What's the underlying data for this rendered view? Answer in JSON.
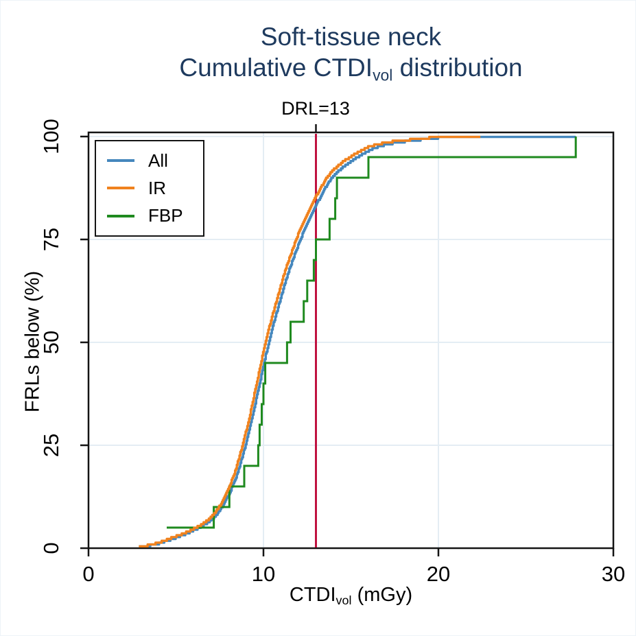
{
  "title": {
    "line1": "Soft-tissue neck",
    "line2_pre": "Cumulative CTDI",
    "line2_sub": "vol",
    "line2_post": " distribution",
    "color": "#1e3a5e"
  },
  "reference_label": "DRL=13",
  "y_axis_label": "FRLs below (%)",
  "x_axis_label": {
    "pre": "CTDI",
    "sub": "vol",
    "post": " (mGy)"
  },
  "legend": {
    "items": [
      {
        "label": "All",
        "color": "#4587bd"
      },
      {
        "label": "IR",
        "color": "#f0821e"
      },
      {
        "label": "FBP",
        "color": "#1f8a1f"
      }
    ]
  },
  "colors": {
    "frame": "#141414",
    "grid": "#e4edf4",
    "tick_text": "#000000",
    "reference_line": "#c01240"
  },
  "chart_data": {
    "type": "line",
    "subtype": "cumulative-distribution",
    "title": "Soft-tissue neck — Cumulative CTDIvol distribution",
    "xlabel": "CTDIvol (mGy)",
    "ylabel": "FRLs below (%)",
    "xlim": [
      0,
      30
    ],
    "ylim": [
      0,
      100
    ],
    "x_ticks": [
      0,
      10,
      20,
      30
    ],
    "y_ticks": [
      0,
      25,
      50,
      75,
      100
    ],
    "grid_x": [
      10,
      20
    ],
    "grid_y": [
      25,
      50,
      75,
      100
    ],
    "reference_line": {
      "x": 13,
      "label": "DRL=13"
    },
    "series": [
      {
        "name": "All",
        "color": "#4587bd",
        "style": "ecdf_smooth",
        "points": [
          [
            2.88,
            0.3
          ],
          [
            3.4,
            0.6
          ],
          [
            3.9,
            1.0
          ],
          [
            4.4,
            1.7
          ],
          [
            4.9,
            2.4
          ],
          [
            5.4,
            3.2
          ],
          [
            5.9,
            4.1
          ],
          [
            6.4,
            5.2
          ],
          [
            6.9,
            6.5
          ],
          [
            7.3,
            8.1
          ],
          [
            7.7,
            10.5
          ],
          [
            8.1,
            13.8
          ],
          [
            8.5,
            18
          ],
          [
            8.9,
            24
          ],
          [
            9.3,
            31
          ],
          [
            9.7,
            38.5
          ],
          [
            10.1,
            46.5
          ],
          [
            10.5,
            53.5
          ],
          [
            10.9,
            59.5
          ],
          [
            11.3,
            65.5
          ],
          [
            11.7,
            70.5
          ],
          [
            12.1,
            75
          ],
          [
            12.5,
            79
          ],
          [
            12.9,
            82.5
          ],
          [
            13.3,
            85.8
          ],
          [
            13.7,
            88.8
          ],
          [
            14.1,
            91
          ],
          [
            14.6,
            92.8
          ],
          [
            15.1,
            94.3
          ],
          [
            15.6,
            95.6
          ],
          [
            16.1,
            96.8
          ],
          [
            16.7,
            97.7
          ],
          [
            17.3,
            98.3
          ],
          [
            18.1,
            98.8
          ],
          [
            18.9,
            99.2
          ],
          [
            19.6,
            99.5
          ],
          [
            20.2,
            99.8
          ],
          [
            20.9,
            100
          ],
          [
            27.85,
            100
          ]
        ]
      },
      {
        "name": "IR",
        "color": "#f0821e",
        "style": "ecdf_smooth",
        "points": [
          [
            2.88,
            0.3
          ],
          [
            3.3,
            0.6
          ],
          [
            3.8,
            1.1
          ],
          [
            4.3,
            1.8
          ],
          [
            4.8,
            2.6
          ],
          [
            5.3,
            3.4
          ],
          [
            5.8,
            4.3
          ],
          [
            6.3,
            5.4
          ],
          [
            6.8,
            6.8
          ],
          [
            7.2,
            8.5
          ],
          [
            7.6,
            11
          ],
          [
            8.0,
            14.5
          ],
          [
            8.4,
            19
          ],
          [
            8.8,
            25
          ],
          [
            9.2,
            32
          ],
          [
            9.6,
            40
          ],
          [
            10.0,
            48
          ],
          [
            10.4,
            55
          ],
          [
            10.8,
            61
          ],
          [
            11.2,
            67
          ],
          [
            11.6,
            72
          ],
          [
            12.0,
            76.5
          ],
          [
            12.4,
            80.5
          ],
          [
            12.8,
            84
          ],
          [
            13.2,
            87
          ],
          [
            13.6,
            90
          ],
          [
            14.0,
            92
          ],
          [
            14.5,
            93.8
          ],
          [
            15.0,
            95.2
          ],
          [
            15.5,
            96.4
          ],
          [
            16.0,
            97.5
          ],
          [
            16.6,
            98.2
          ],
          [
            17.2,
            98.7
          ],
          [
            18.0,
            99.1
          ],
          [
            18.8,
            99.4
          ],
          [
            19.5,
            99.7
          ],
          [
            20.1,
            99.9
          ],
          [
            20.4,
            100
          ],
          [
            22.4,
            100
          ]
        ]
      },
      {
        "name": "FBP",
        "color": "#1f8a1f",
        "style": "ecdf_steps",
        "start_pct": 5,
        "step_pct": 5,
        "values": [
          4.47,
          7.16,
          8.05,
          8.9,
          9.7,
          9.78,
          9.9,
          10.0,
          10.1,
          11.35,
          11.55,
          12.3,
          12.5,
          12.88,
          13.0,
          13.78,
          14.1,
          14.2,
          16.0,
          27.85
        ]
      }
    ]
  }
}
